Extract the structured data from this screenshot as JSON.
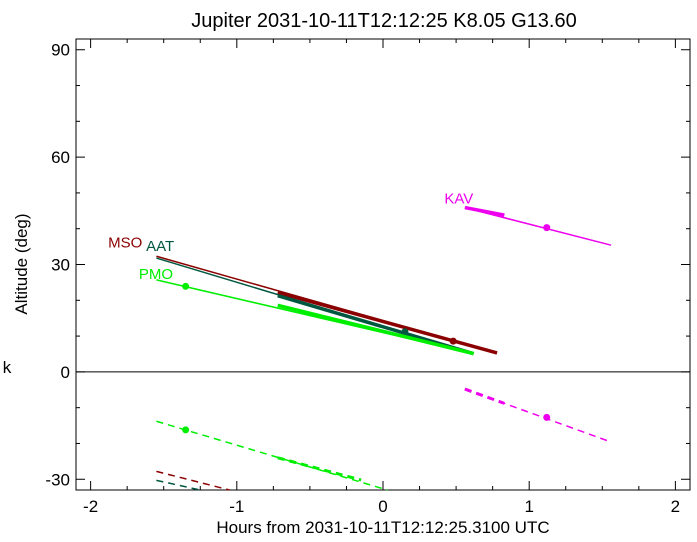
{
  "chart_data": {
    "type": "line",
    "title": "Jupiter 2031-10-11T12:12:25  K8.05  G13.60",
    "xlabel": "Hours from 2031-10-11T12:12:25.3100 UTC",
    "ylabel": "Altitude (deg)",
    "xlim": [
      -2.1,
      2.1
    ],
    "ylim": [
      -33,
      93
    ],
    "xticks": [
      -2,
      -1,
      0,
      1,
      2
    ],
    "yticks": [
      -30,
      0,
      30,
      60,
      90
    ],
    "zero_line": 0,
    "side_mark": "k",
    "grid": false,
    "series": [
      {
        "name": "MSO",
        "color": "#8b0000",
        "label_at": [
          -1.88,
          34.8
        ],
        "above": {
          "x": [
            -1.55,
            0.78
          ],
          "y": [
            32.3,
            5.3
          ]
        },
        "thick": {
          "x": [
            -0.72,
            0.78
          ],
          "y": [
            22.2,
            5.3
          ]
        },
        "marker": [
          0.48,
          8.6
        ],
        "below": {
          "x": [
            -1.55,
            -1.05
          ],
          "y": [
            -27.8,
            -33.0
          ]
        }
      },
      {
        "name": "AAT",
        "color": "#00573f",
        "label_at": [
          -1.62,
          33.8
        ],
        "above": {
          "x": [
            -1.55,
            0.62
          ],
          "y": [
            31.8,
            5.1
          ]
        },
        "thick": {
          "x": [
            -0.72,
            0.62
          ],
          "y": [
            21.3,
            5.1
          ]
        },
        "marker": [
          0.15,
          11.2
        ],
        "below": {
          "x": [
            -1.55,
            -1.25
          ],
          "y": [
            -30.3,
            -33.0
          ]
        }
      },
      {
        "name": "PMO",
        "color": "#00ee00",
        "label_at": [
          -1.67,
          26.0
        ],
        "above": {
          "x": [
            -1.55,
            0.62
          ],
          "y": [
            25.7,
            5.1
          ]
        },
        "thick": {
          "x": [
            -0.72,
            0.62
          ],
          "y": [
            18.6,
            5.1
          ]
        },
        "marker": [
          -1.35,
          23.9
        ],
        "below": {
          "x": [
            -1.55,
            0.03
          ],
          "y": [
            -13.8,
            -33.0
          ]
        },
        "below_thick": {
          "x": [
            -0.72,
            -0.15
          ],
          "y": [
            -24.0,
            -30.2
          ]
        },
        "below_marker": [
          -1.35,
          -16.2
        ]
      },
      {
        "name": "KAV",
        "color": "#ee00ee",
        "label_at": [
          0.42,
          47.0
        ],
        "above": {
          "x": [
            0.56,
            1.56
          ],
          "y": [
            45.9,
            35.4
          ]
        },
        "thick": {
          "x": [
            0.56,
            0.83
          ],
          "y": [
            45.9,
            43.8
          ]
        },
        "marker": [
          1.12,
          40.3
        ],
        "below": {
          "x": [
            0.56,
            1.56
          ],
          "y": [
            -4.8,
            -19.6
          ]
        },
        "below_thick": {
          "x": [
            0.56,
            0.83
          ],
          "y": [
            -4.8,
            -8.8
          ]
        },
        "below_marker": [
          1.12,
          -12.7
        ]
      }
    ]
  }
}
